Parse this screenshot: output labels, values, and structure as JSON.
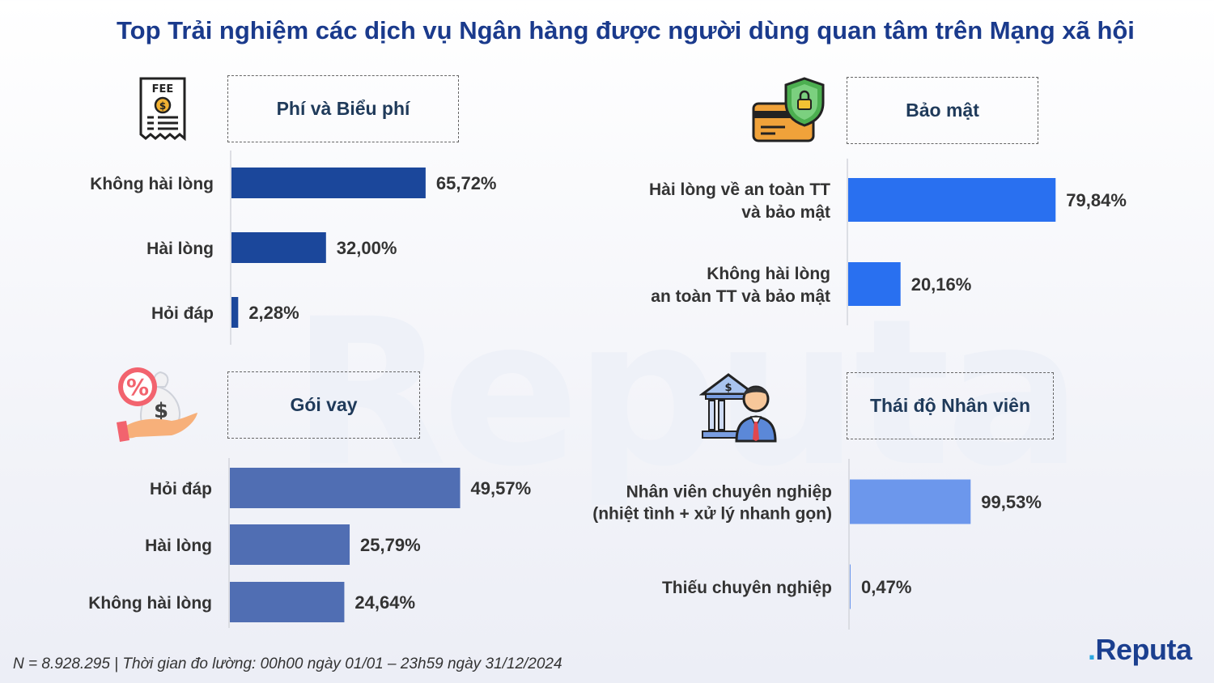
{
  "title": "Top Trải nghiệm các dịch vụ Ngân hàng được người dùng quan tâm trên Mạng xã hội",
  "watermark": "Reputa",
  "footer": "N = 8.928.295 | Thời gian đo lường: 00h00 ngày 01/01 – 23h59 ngày 31/12/2024",
  "logo": {
    "dot": ".",
    "text": "Reputa"
  },
  "icons": [
    "fee-receipt-icon",
    "security-card-shield-icon",
    "loan-money-bag-icon",
    "bank-staff-icon"
  ],
  "chart_data": [
    {
      "type": "bar",
      "orientation": "horizontal",
      "title": "Phí và Biểu phí",
      "categories": [
        "Không hài lòng",
        "Hài lòng",
        "Hỏi đáp"
      ],
      "values": [
        65.72,
        32.0,
        2.28
      ],
      "labels": [
        "65,72%",
        "32,00%",
        "2,28%"
      ],
      "color": "#1b479b",
      "xlim": [
        0,
        100
      ]
    },
    {
      "type": "bar",
      "orientation": "horizontal",
      "title": "Bảo mật",
      "categories": [
        [
          "Hài lòng về an toàn TT",
          "và bảo mật"
        ],
        [
          "Không hài lòng",
          "an toàn TT và bảo mật"
        ]
      ],
      "values": [
        79.84,
        20.16
      ],
      "labels": [
        "79,84%",
        "20,16%"
      ],
      "color": "#2970f0",
      "xlim": [
        0,
        100
      ]
    },
    {
      "type": "bar",
      "orientation": "horizontal",
      "title": "Gói vay",
      "categories": [
        "Hỏi đáp",
        "Hài lòng",
        "Không hài lòng"
      ],
      "values": [
        49.57,
        25.79,
        24.64
      ],
      "labels": [
        "49,57%",
        "25,79%",
        "24,64%"
      ],
      "color": "#506eb3",
      "xlim": [
        0,
        100
      ]
    },
    {
      "type": "bar",
      "orientation": "horizontal",
      "title": "Thái độ Nhân viên",
      "categories": [
        [
          "Nhân viên chuyên nghiệp",
          "(nhiệt tình + xử lý nhanh gọn)"
        ],
        [
          "Thiếu chuyên nghiệp"
        ]
      ],
      "values": [
        99.53,
        0.47
      ],
      "labels": [
        "99,53%",
        "0,47%"
      ],
      "color": "#6c97ec",
      "xlim": [
        0,
        100
      ]
    }
  ]
}
